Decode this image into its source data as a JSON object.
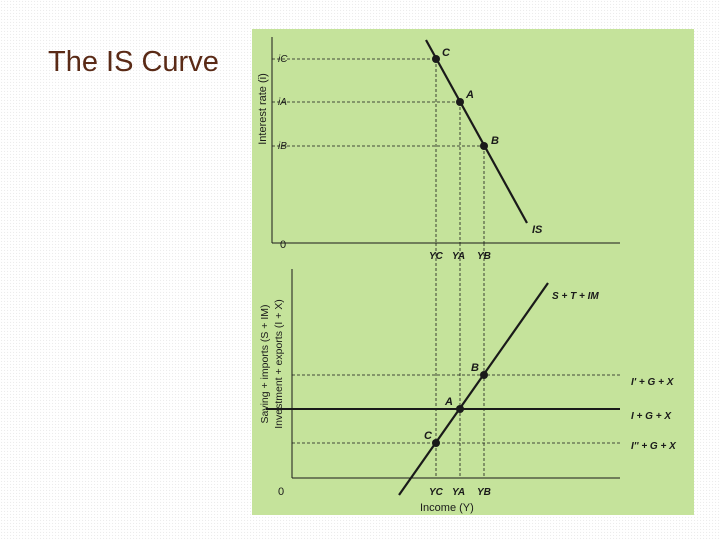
{
  "slide": {
    "title": "The IS Curve"
  },
  "colors": {
    "panel": "#c5e39b",
    "text_title": "#5a2a16",
    "ink": "#1a1a1a"
  },
  "top_panel": {
    "y_axis_label": "Interest rate (i)",
    "origin_label": "0",
    "i_ticks": [
      "iC",
      "iA",
      "iB"
    ],
    "point_labels": [
      "C",
      "A",
      "B"
    ],
    "curve_label": "IS",
    "y_ticks_x": [
      "YC",
      "YA",
      "YB"
    ]
  },
  "bottom_panel": {
    "y_axis_label_line1": "Saving + imports (S + IM)",
    "y_axis_label_line2": "Investment + exports (I + X)",
    "origin_label": "0",
    "x_axis_label": "Income (Y)",
    "rising_line_label": "S + T + IM",
    "point_labels": [
      "B",
      "A",
      "C"
    ],
    "y_ticks_x": [
      "YC",
      "YA",
      "YB"
    ],
    "horizontal_lines": [
      "I' + G + X",
      "I + G + X",
      "I'' + G + X"
    ]
  }
}
